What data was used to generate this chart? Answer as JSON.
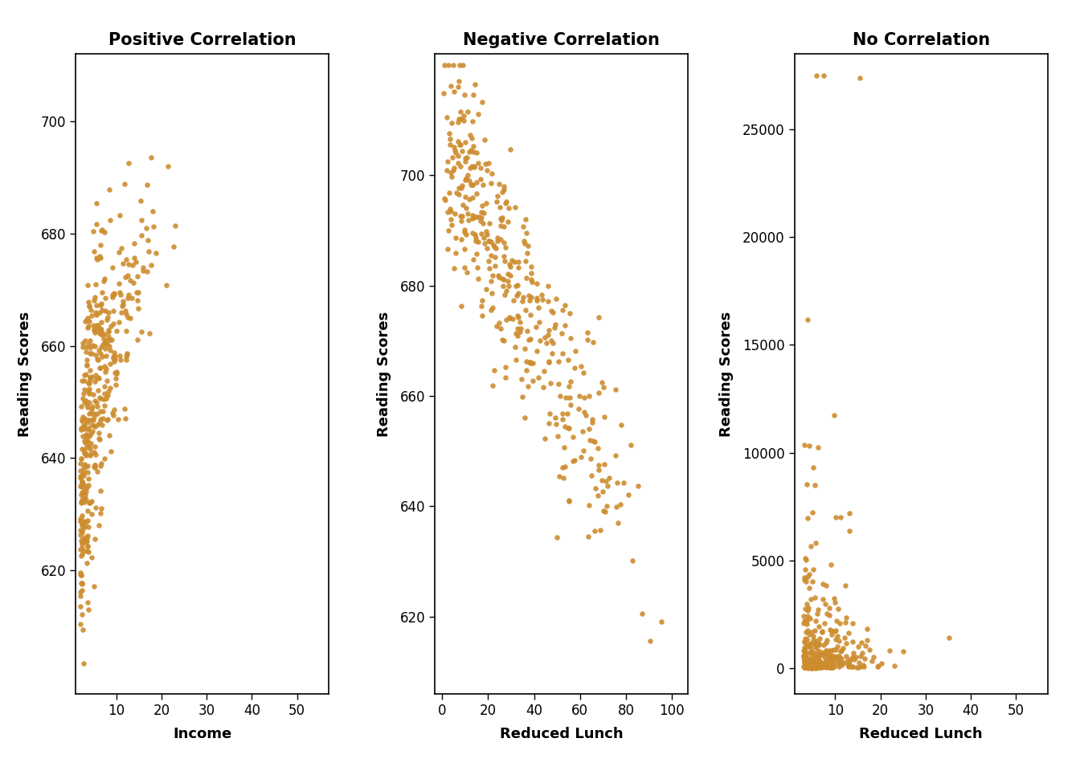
{
  "titles": [
    "Positive Correlation",
    "Negative Correlation",
    "No Correlation"
  ],
  "xlabels": [
    "Income",
    "Reduced Lunch",
    "Reduced Lunch"
  ],
  "ylabel": "Reading Scores",
  "dot_color": "#CD8D2F",
  "background_color": "#FFFFFF",
  "title_fontsize": 15,
  "label_fontsize": 13,
  "tick_fontsize": 12,
  "dot_size": 22,
  "dot_alpha": 0.9,
  "seeds": [
    42,
    99,
    7
  ],
  "plot1": {
    "x_range": [
      1,
      57
    ],
    "y_range": [
      598,
      712
    ],
    "x_ticks": [
      10,
      20,
      30,
      40,
      50
    ],
    "y_ticks": [
      620,
      640,
      660,
      680,
      700
    ]
  },
  "plot2": {
    "x_range": [
      -3,
      107
    ],
    "y_range": [
      606,
      722
    ],
    "x_ticks": [
      0,
      20,
      40,
      60,
      80,
      100
    ],
    "y_ticks": [
      620,
      640,
      660,
      680,
      700
    ]
  },
  "plot3": {
    "x_range": [
      1,
      57
    ],
    "y_range": [
      -1200,
      28500
    ],
    "x_ticks": [
      10,
      20,
      30,
      40,
      50
    ],
    "y_ticks": [
      0,
      5000,
      10000,
      15000,
      20000,
      25000
    ]
  }
}
